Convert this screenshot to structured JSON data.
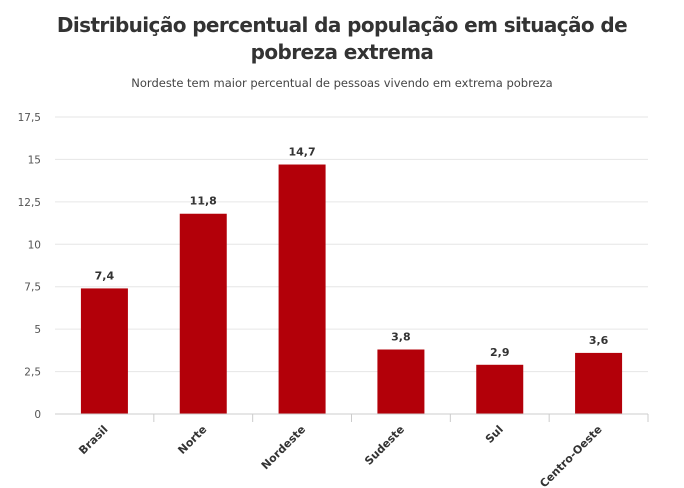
{
  "chart": {
    "title": "Distribuição percentual da população em situação de pobreza extrema",
    "subtitle": "Nordeste tem maior percentual de pessoas vivendo em extrema pobreza"
  },
  "colors": {
    "bar": "#b30009",
    "grid": "#e6e6e6",
    "axis": "#cccccc"
  },
  "chart_data": {
    "type": "bar",
    "title": "Distribuição percentual da população em situação de pobreza extrema",
    "subtitle": "Nordeste tem maior percentual de pessoas vivendo em extrema pobreza",
    "categories": [
      "Brasil",
      "Norte",
      "Nordeste",
      "Sudeste",
      "Sul",
      "Centro-Oeste"
    ],
    "values": [
      7.4,
      11.8,
      14.7,
      3.8,
      2.9,
      3.6
    ],
    "data_labels": [
      "7,4",
      "11,8",
      "14,7",
      "3,8",
      "2,9",
      "3,6"
    ],
    "xlabel": "",
    "ylabel": "",
    "ylim": [
      0,
      17.5
    ],
    "y_ticks": [
      0,
      2.5,
      5,
      7.5,
      10,
      12.5,
      15,
      17.5
    ],
    "y_tick_labels": [
      "0",
      "2,5",
      "5",
      "7,5",
      "10",
      "12,5",
      "15",
      "17,5"
    ],
    "grid": true,
    "legend": "none"
  }
}
